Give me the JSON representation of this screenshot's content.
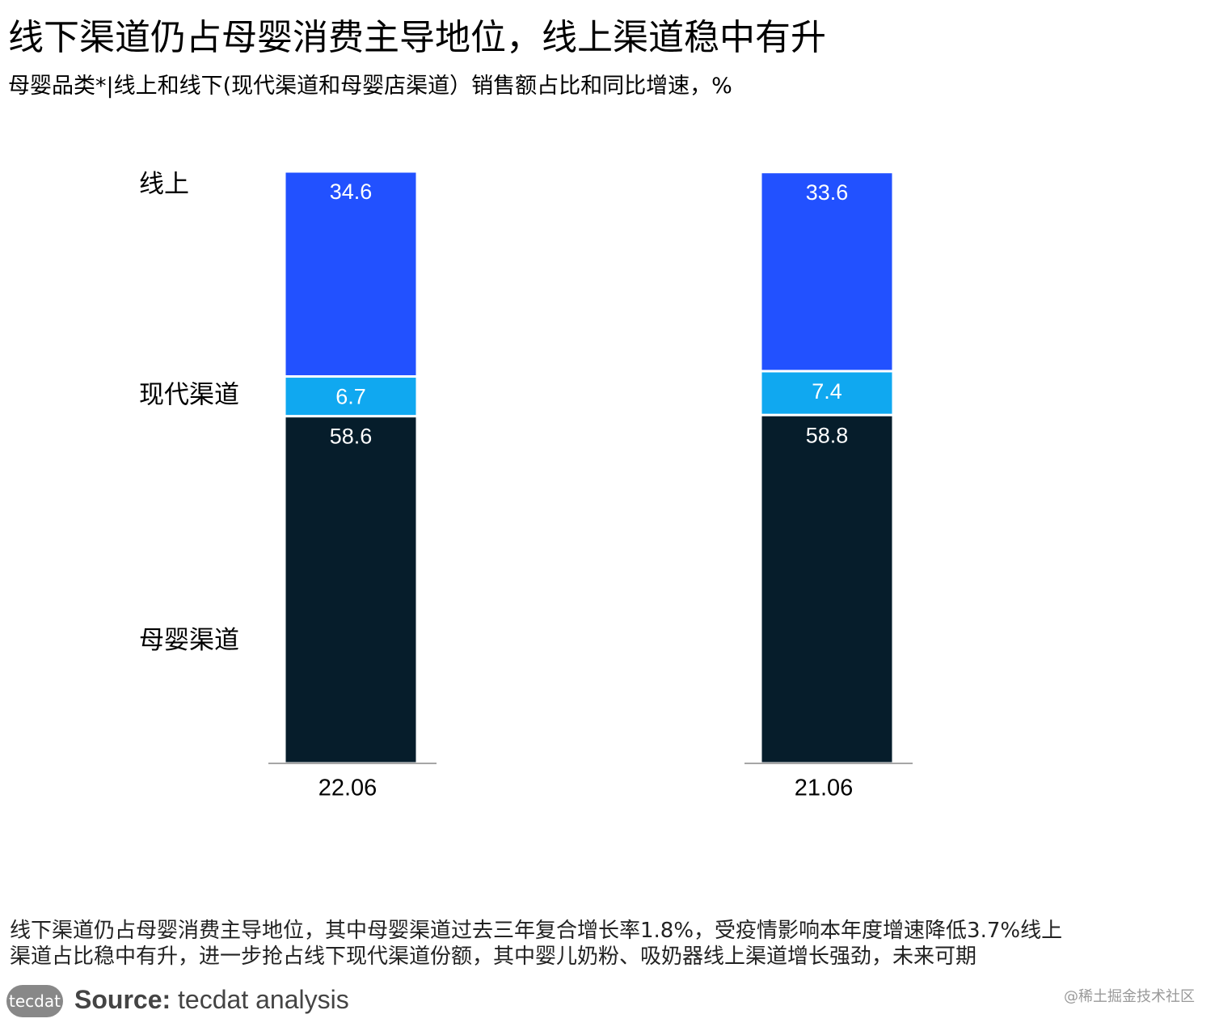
{
  "title": "线下渠道仍占母婴消费主导地位，线上渠道稳中有升",
  "subtitle": "母婴品类*|线上和线下(现代渠道和母婴店渠道）销售额占比和同比增速，%",
  "notes": [
    "线下渠道仍占母婴消费主导地位，其中母婴渠道过去三年复合增长率1.8%，受疫情影响本年度增速降低3.7%线上",
    "渠道占比稳中有升，进一步抢占线下现代渠道份额，其中婴儿奶粉、吸奶器线上渠道增长强劲，未来可期"
  ],
  "source": {
    "logo": "tecdat",
    "label": "Source:",
    "text": "tecdat analysis"
  },
  "watermark": "@稀土掘金技术社区",
  "chart_data": {
    "type": "stacked-bar",
    "categories": [
      "22.06",
      "21.06"
    ],
    "series": [
      {
        "name": "母婴渠道",
        "color": "#061d2b",
        "values": [
          58.6,
          58.8
        ]
      },
      {
        "name": "现代渠道",
        "color": "#10a8f0",
        "values": [
          6.7,
          7.4
        ]
      },
      {
        "name": "线上",
        "color": "#2251ff",
        "values": [
          34.6,
          33.6
        ]
      }
    ]
  }
}
